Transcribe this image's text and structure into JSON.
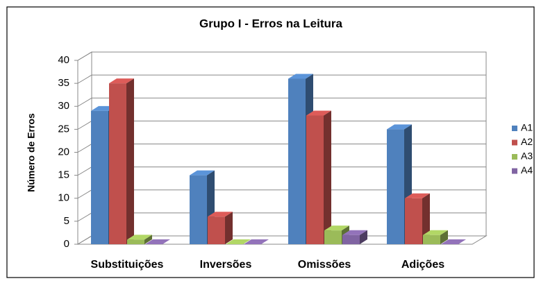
{
  "chart_data": {
    "type": "bar3d",
    "title": "Grupo I - Erros na Leitura",
    "y_axis_label": "Número de Erros",
    "categories": [
      "Substituições",
      "Inversões",
      "Omissões",
      "Adições"
    ],
    "series": [
      {
        "name": "A1",
        "color": "#4f81bd",
        "values": [
          29,
          15,
          36,
          25
        ]
      },
      {
        "name": "A2",
        "color": "#c0504d",
        "values": [
          35,
          6,
          28,
          10
        ]
      },
      {
        "name": "A3",
        "color": "#9bbb59",
        "values": [
          1,
          0,
          3,
          2
        ]
      },
      {
        "name": "A4",
        "color": "#8064a2",
        "values": [
          0,
          0,
          2,
          0
        ]
      }
    ],
    "ylim": [
      0,
      40
    ],
    "yticks": [
      0,
      5,
      10,
      15,
      20,
      25,
      30,
      35,
      40
    ],
    "grid": true,
    "legend": "right"
  }
}
